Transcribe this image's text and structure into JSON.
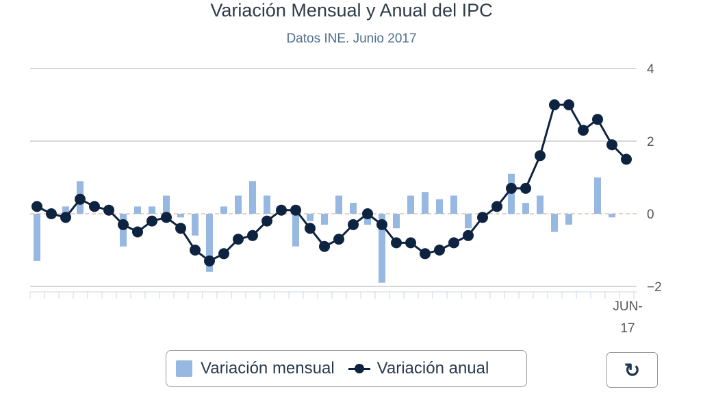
{
  "chart_data": {
    "type": "bar+line",
    "title": "Variación Mensual y Anual del IPC",
    "subtitle": "Datos INE. Junio 2017",
    "x_last_label": [
      "JUN-",
      "17"
    ],
    "n_points": 42,
    "y_ticks": [
      "4",
      "2",
      "0",
      "−2"
    ],
    "ylim": [
      -2,
      4
    ],
    "grid": true,
    "series": [
      {
        "name": "Variación mensual",
        "type": "bar",
        "color": "#97b8e0",
        "values": [
          -1.3,
          0,
          0.2,
          0.9,
          0,
          0,
          -0.9,
          0.2,
          0.2,
          0.5,
          -0.1,
          -0.6,
          -1.6,
          0.2,
          0.5,
          0.9,
          0.5,
          0,
          -0.9,
          -0.2,
          -0.3,
          0.5,
          0.3,
          -0.3,
          -1.9,
          -0.4,
          0.5,
          0.6,
          0.4,
          0.5,
          -0.4,
          0,
          0,
          1.1,
          0.3,
          0.5,
          -0.5,
          -0.3,
          0,
          1.0,
          -0.1,
          0
        ]
      },
      {
        "name": "Variación anual",
        "type": "line",
        "color": "#0e2340",
        "values": [
          0.2,
          0.0,
          -0.1,
          0.4,
          0.2,
          0.1,
          -0.3,
          -0.5,
          -0.2,
          -0.1,
          -0.4,
          -1.0,
          -1.3,
          -1.1,
          -0.7,
          -0.6,
          -0.2,
          0.1,
          0.1,
          -0.4,
          -0.9,
          -0.7,
          -0.3,
          0.0,
          -0.3,
          -0.8,
          -0.8,
          -1.1,
          -1.0,
          -0.8,
          -0.6,
          -0.1,
          0.2,
          0.7,
          0.7,
          1.6,
          3.0,
          3.0,
          2.3,
          2.6,
          1.9,
          1.5
        ]
      }
    ],
    "legend": "bottom-center"
  },
  "legend": {
    "monthly": "Variación mensual",
    "annual": "Variación anual"
  },
  "refresh_icon": "refresh-icon"
}
